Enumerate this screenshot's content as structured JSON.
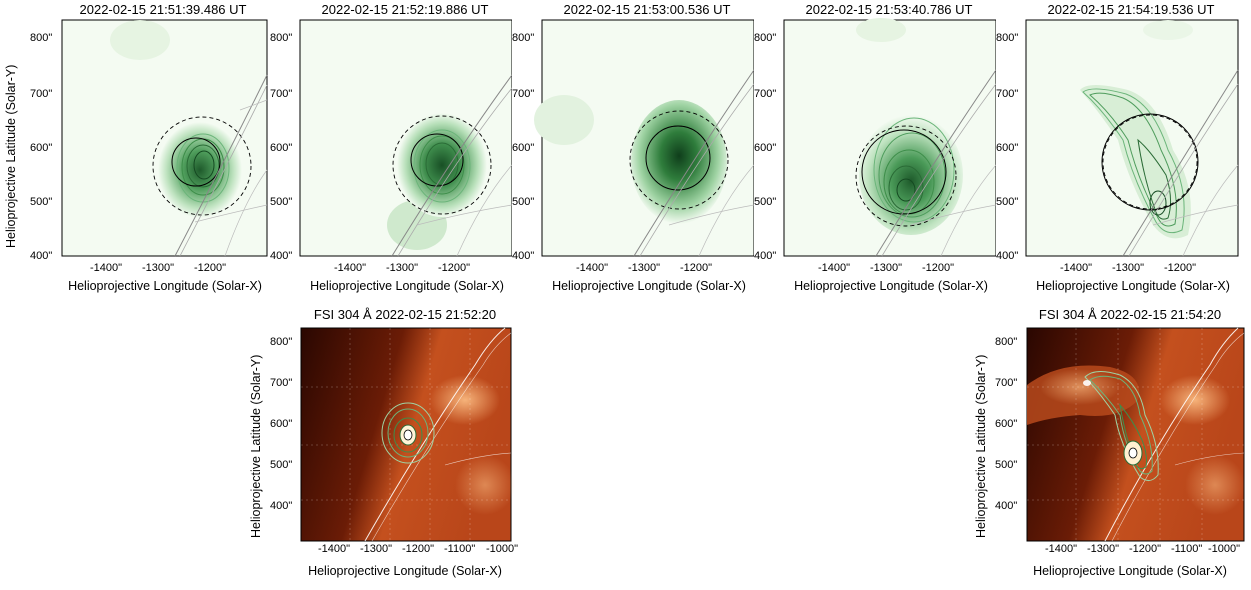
{
  "top_row": {
    "ylabel": "Helioprojective Latitude (Solar-Y)",
    "xlabel": "Helioprojective Longitude (Solar-X)",
    "yticks": [
      "800\"",
      "700\"",
      "600\"",
      "500\"",
      "400\""
    ],
    "xticks": [
      "-1400\"",
      "-1300\"",
      "-1200\""
    ],
    "panels": [
      {
        "title": "2022-02-15 21:51:39.486 UT"
      },
      {
        "title": "2022-02-15 21:52:19.886 UT"
      },
      {
        "title": "2022-02-15 21:53:00.536 UT"
      },
      {
        "title": "2022-02-15 21:53:40.786 UT"
      },
      {
        "title": "2022-02-15 21:54:19.536 UT"
      }
    ]
  },
  "bottom_row": {
    "ylabel": "Helioprojective Latitude (Solar-Y)",
    "xlabel": "Helioprojective Longitude (Solar-X)",
    "yticks": [
      "800\"",
      "700\"",
      "600\"",
      "500\"",
      "400\""
    ],
    "xticks": [
      "-1400\"",
      "-1300\"",
      "-1200\"",
      "-1100\"",
      "-1000\""
    ],
    "panels": [
      {
        "title": "FSI 304 Å 2022-02-15 21:52:20"
      },
      {
        "title": "FSI 304 Å 2022-02-15 21:54:20"
      }
    ]
  },
  "colors": {
    "green_map": "#2f7d3c",
    "contour": "#3e8e4a",
    "euv_dark": "#3a0a02",
    "euv_bright": "#e8743a"
  }
}
